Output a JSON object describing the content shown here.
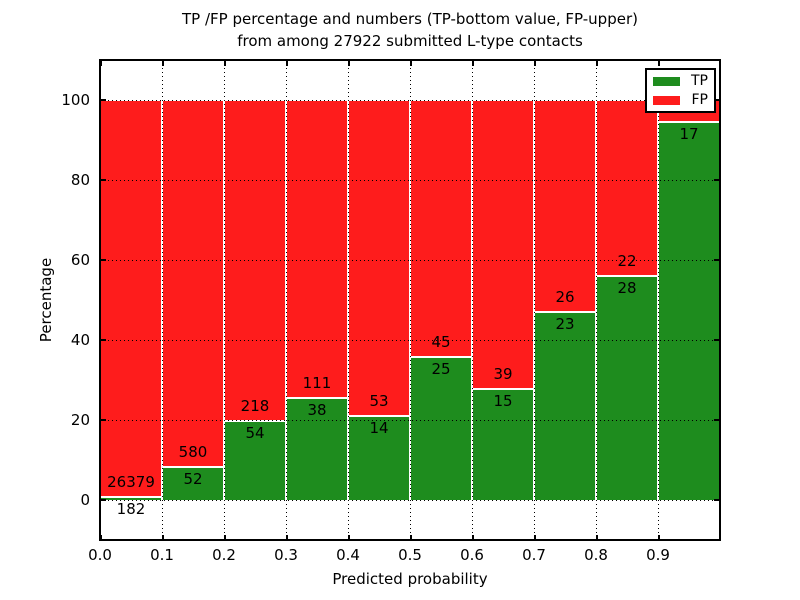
{
  "header": {
    "title_line1": "TP /FP percentage and numbers (TP-bottom value, FP-upper)",
    "title_line2": "from among 27922 submitted L-type contacts"
  },
  "chart_data": {
    "type": "bar",
    "stacked": true,
    "orientation": "vertical",
    "title": "TP /FP percentage and numbers (TP-bottom value, FP-upper) from among 27922 submitted L-type contacts",
    "xlabel": "Predicted probability",
    "ylabel": "Percentage",
    "total_submitted_contacts": 27922,
    "xlim": [
      0.0,
      1.0
    ],
    "ylim_displayed": [
      -10,
      110
    ],
    "x_tick_labels": [
      "0.0",
      "0.1",
      "0.2",
      "0.3",
      "0.4",
      "0.5",
      "0.6",
      "0.7",
      "0.8",
      "0.9"
    ],
    "y_tick_values": [
      0,
      20,
      40,
      60,
      80,
      100
    ],
    "y_tick_labels": [
      "0",
      "20",
      "40",
      "60",
      "80",
      "100"
    ],
    "grid": {
      "on": true,
      "style": "dotted",
      "color": "#000000"
    },
    "colors": {
      "tp": "#1e8c1e",
      "fp": "#fe1c1c",
      "bar_edge": "#ffffff"
    },
    "legend": {
      "position": "upper right",
      "entries": [
        {
          "label": "TP",
          "color": "#1e8c1e"
        },
        {
          "label": "FP",
          "color": "#fe1c1c"
        }
      ]
    },
    "bins": [
      {
        "x0": 0.0,
        "x1": 0.1,
        "tp": 182,
        "fp": 26379,
        "tp_pct": 0.69
      },
      {
        "x0": 0.1,
        "x1": 0.2,
        "tp": 52,
        "fp": 580,
        "tp_pct": 8.23
      },
      {
        "x0": 0.2,
        "x1": 0.3,
        "tp": 54,
        "fp": 218,
        "tp_pct": 19.85
      },
      {
        "x0": 0.3,
        "x1": 0.4,
        "tp": 38,
        "fp": 111,
        "tp_pct": 25.5
      },
      {
        "x0": 0.4,
        "x1": 0.5,
        "tp": 14,
        "fp": 53,
        "tp_pct": 20.9
      },
      {
        "x0": 0.5,
        "x1": 0.6,
        "tp": 25,
        "fp": 45,
        "tp_pct": 35.71
      },
      {
        "x0": 0.6,
        "x1": 0.7,
        "tp": 15,
        "fp": 39,
        "tp_pct": 27.78
      },
      {
        "x0": 0.7,
        "x1": 0.8,
        "tp": 23,
        "fp": 26,
        "tp_pct": 46.94
      },
      {
        "x0": 0.8,
        "x1": 0.9,
        "tp": 28,
        "fp": 22,
        "tp_pct": 56.0
      },
      {
        "x0": 0.9,
        "x1": 1.0,
        "tp": 17,
        "fp": null,
        "tp_pct": 94.44
      }
    ]
  }
}
